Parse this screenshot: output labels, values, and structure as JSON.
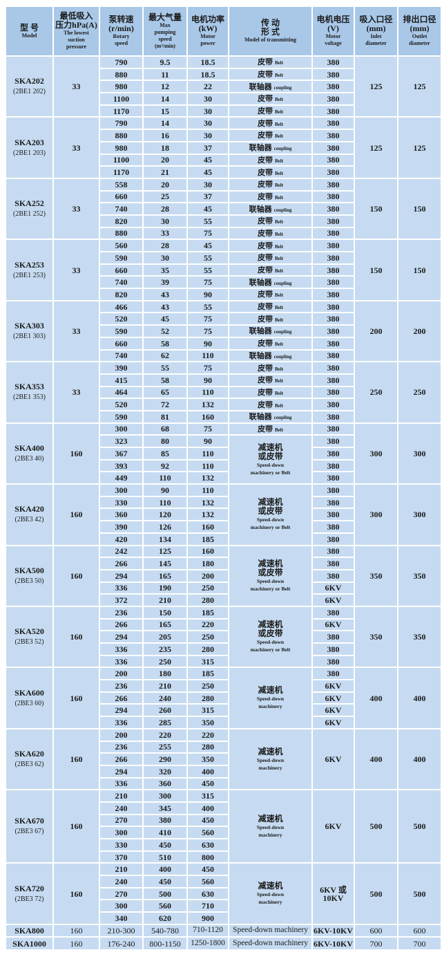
{
  "colors": {
    "header_bg": "#a9c8e8",
    "body_bg": "#c6dbf1",
    "grid": "#ffffff"
  },
  "columns": [
    {
      "cn": [
        "型 号"
      ],
      "en": [
        "Model"
      ]
    },
    {
      "cn": [
        "最低吸入",
        "压力hPa(A)"
      ],
      "en": [
        "The lowest",
        "suction",
        "pressure"
      ]
    },
    {
      "cn": [
        "泵转速",
        "(r/min)"
      ],
      "en": [
        "Rotary",
        "speed"
      ]
    },
    {
      "cn": [
        "最大气量"
      ],
      "en": [
        "Max",
        "pumping",
        "speed",
        "(m³/min)"
      ]
    },
    {
      "cn": [
        "电机功率",
        "(kW)"
      ],
      "en": [
        "Motor",
        "power"
      ]
    },
    {
      "cn": [
        "传 动",
        "形 式"
      ],
      "en": [
        "Model of transmitting"
      ]
    },
    {
      "cn": [
        "电机电压",
        "(V)"
      ],
      "en": [
        "Motor",
        "voltage"
      ]
    },
    {
      "cn": [
        "吸入口径",
        "(mm)"
      ],
      "en": [
        "Inlet",
        "diameter"
      ]
    },
    {
      "cn": [
        "排出口径",
        "(mm)"
      ],
      "en": [
        "Outlet",
        "diameter"
      ]
    }
  ],
  "transmissions": {
    "B": {
      "cn": "皮带",
      "en": "Belt"
    },
    "C": {
      "cn": "联轴器",
      "en": "coupling"
    },
    "SB": {
      "cn": [
        "减速机",
        "或皮带"
      ],
      "en": [
        "Speed-down",
        "machinery or Belt"
      ]
    },
    "S": {
      "cn": [
        "减速机"
      ],
      "en": [
        "Speed-down",
        "machinery"
      ]
    }
  },
  "groups": [
    {
      "model": "SKA202",
      "code": "(2BE1 202)",
      "pressure": "33",
      "rows": [
        [
          "790",
          "9.5",
          "18.5"
        ],
        [
          "880",
          "11",
          "18.5"
        ],
        [
          "980",
          "12",
          "22"
        ],
        [
          "1100",
          "14",
          "30"
        ],
        [
          "1170",
          "15",
          "30"
        ]
      ],
      "trans": [
        [
          "B",
          1
        ],
        [
          "B",
          1
        ],
        [
          "C",
          1
        ],
        [
          "B",
          1
        ],
        [
          "B",
          1
        ]
      ],
      "voltage": [
        [
          "380",
          1
        ],
        [
          "380",
          1
        ],
        [
          "380",
          1
        ],
        [
          "380",
          1
        ],
        [
          "380",
          1
        ]
      ],
      "inlet": "125",
      "outlet": "125"
    },
    {
      "model": "SKA203",
      "code": "(2BE1 203)",
      "pressure": "33",
      "rows": [
        [
          "790",
          "14",
          "30"
        ],
        [
          "880",
          "16",
          "30"
        ],
        [
          "980",
          "18",
          "37"
        ],
        [
          "1100",
          "20",
          "45"
        ],
        [
          "1170",
          "21",
          "45"
        ]
      ],
      "trans": [
        [
          "B",
          1
        ],
        [
          "B",
          1
        ],
        [
          "C",
          1
        ],
        [
          "B",
          1
        ],
        [
          "B",
          1
        ]
      ],
      "voltage": [
        [
          "380",
          1
        ],
        [
          "380",
          1
        ],
        [
          "380",
          1
        ],
        [
          "380",
          1
        ],
        [
          "380",
          1
        ]
      ],
      "inlet": "125",
      "outlet": "125"
    },
    {
      "model": "SKA252",
      "code": "(2BE1 252)",
      "pressure": "33",
      "rows": [
        [
          "558",
          "20",
          "30"
        ],
        [
          "660",
          "25",
          "37"
        ],
        [
          "740",
          "28",
          "45"
        ],
        [
          "820",
          "30",
          "55"
        ],
        [
          "880",
          "33",
          "75"
        ]
      ],
      "trans": [
        [
          "B",
          1
        ],
        [
          "B",
          1
        ],
        [
          "C",
          1
        ],
        [
          "B",
          1
        ],
        [
          "B",
          1
        ]
      ],
      "voltage": [
        [
          "380",
          1
        ],
        [
          "380",
          1
        ],
        [
          "380",
          1
        ],
        [
          "380",
          1
        ],
        [
          "380",
          1
        ]
      ],
      "inlet": "150",
      "outlet": "150"
    },
    {
      "model": "SKA253",
      "code": "(2BE1 253)",
      "pressure": "33",
      "rows": [
        [
          "560",
          "28",
          "45"
        ],
        [
          "590",
          "30",
          "55"
        ],
        [
          "660",
          "35",
          "55"
        ],
        [
          "740",
          "39",
          "75"
        ],
        [
          "820",
          "43",
          "90"
        ]
      ],
      "trans": [
        [
          "B",
          1
        ],
        [
          "B",
          1
        ],
        [
          "B",
          1
        ],
        [
          "C",
          1
        ],
        [
          "B",
          1
        ]
      ],
      "voltage": [
        [
          "380",
          1
        ],
        [
          "380",
          1
        ],
        [
          "380",
          1
        ],
        [
          "380",
          1
        ],
        [
          "380",
          1
        ]
      ],
      "inlet": "150",
      "outlet": "150"
    },
    {
      "model": "SKA303",
      "code": "(2BE1 303)",
      "pressure": "33",
      "rows": [
        [
          "466",
          "43",
          "55"
        ],
        [
          "520",
          "45",
          "75"
        ],
        [
          "590",
          "52",
          "75"
        ],
        [
          "660",
          "58",
          "90"
        ],
        [
          "740",
          "62",
          "110"
        ]
      ],
      "trans": [
        [
          "B",
          1
        ],
        [
          "B",
          1
        ],
        [
          "C",
          1
        ],
        [
          "B",
          1
        ],
        [
          "C",
          1
        ]
      ],
      "voltage": [
        [
          "380",
          1
        ],
        [
          "380",
          1
        ],
        [
          "380",
          1
        ],
        [
          "380",
          1
        ],
        [
          "380",
          1
        ]
      ],
      "inlet": "200",
      "outlet": "200"
    },
    {
      "model": "SKA353",
      "code": "(2BE1 353)",
      "pressure": "33",
      "rows": [
        [
          "390",
          "55",
          "75"
        ],
        [
          "415",
          "58",
          "90"
        ],
        [
          "464",
          "65",
          "110"
        ],
        [
          "520",
          "72",
          "132"
        ],
        [
          "590",
          "81",
          "160"
        ]
      ],
      "trans": [
        [
          "B",
          1
        ],
        [
          "B",
          1
        ],
        [
          "B",
          1
        ],
        [
          "B",
          1
        ],
        [
          "C",
          1
        ]
      ],
      "voltage": [
        [
          "380",
          1
        ],
        [
          "380",
          1
        ],
        [
          "380",
          1
        ],
        [
          "380",
          1
        ],
        [
          "380",
          1
        ]
      ],
      "inlet": "250",
      "outlet": "250"
    },
    {
      "model": "SKA400",
      "code": "(2BE3 40)",
      "pressure": "160",
      "rows": [
        [
          "300",
          "68",
          "75"
        ],
        [
          "323",
          "80",
          "90"
        ],
        [
          "367",
          "85",
          "110"
        ],
        [
          "393",
          "92",
          "110"
        ],
        [
          "449",
          "110",
          "132"
        ]
      ],
      "trans": [
        [
          "B",
          1
        ],
        [
          "SB",
          4
        ]
      ],
      "voltage": [
        [
          "380",
          1
        ],
        [
          "380",
          1
        ],
        [
          "380",
          1
        ],
        [
          "380",
          1
        ],
        [
          "380",
          1
        ]
      ],
      "inlet": "300",
      "outlet": "300"
    },
    {
      "model": "SKA420",
      "code": "(2BE3 42)",
      "pressure": "160",
      "rows": [
        [
          "300",
          "90",
          "110"
        ],
        [
          "330",
          "110",
          "132"
        ],
        [
          "360",
          "120",
          "132"
        ],
        [
          "390",
          "126",
          "160"
        ],
        [
          "420",
          "134",
          "185"
        ]
      ],
      "trans": [
        [
          "SB",
          5
        ]
      ],
      "voltage": [
        [
          "380",
          1
        ],
        [
          "380",
          1
        ],
        [
          "380",
          1
        ],
        [
          "380",
          1
        ],
        [
          "380",
          1
        ]
      ],
      "inlet": "300",
      "outlet": "300"
    },
    {
      "model": "SKA500",
      "code": "(2BE3 50)",
      "pressure": "160",
      "rows": [
        [
          "242",
          "125",
          "160"
        ],
        [
          "266",
          "145",
          "180"
        ],
        [
          "294",
          "165",
          "200"
        ],
        [
          "336",
          "190",
          "250"
        ],
        [
          "372",
          "210",
          "280"
        ]
      ],
      "trans": [
        [
          "SB",
          5
        ]
      ],
      "voltage": [
        [
          "380",
          1
        ],
        [
          "380",
          1
        ],
        [
          "380",
          1
        ],
        [
          "6KV",
          1
        ],
        [
          "6KV",
          1
        ]
      ],
      "inlet": "350",
      "outlet": "350"
    },
    {
      "model": "SKA520",
      "code": "(2BE3 52)",
      "pressure": "160",
      "rows": [
        [
          "236",
          "150",
          "185"
        ],
        [
          "266",
          "165",
          "220"
        ],
        [
          "294",
          "205",
          "250"
        ],
        [
          "336",
          "235",
          "280"
        ],
        [
          "336",
          "250",
          "315"
        ]
      ],
      "trans": [
        [
          "SB",
          5
        ]
      ],
      "voltage": [
        [
          "380",
          1
        ],
        [
          "6KV",
          1
        ],
        [
          "380",
          1
        ],
        [
          "380",
          1
        ],
        [
          "380",
          1
        ]
      ],
      "inlet": "350",
      "outlet": "350"
    },
    {
      "model": "SKA600",
      "code": "(2BE3 60)",
      "pressure": "160",
      "rows": [
        [
          "200",
          "180",
          "185"
        ],
        [
          "236",
          "210",
          "250"
        ],
        [
          "266",
          "240",
          "280"
        ],
        [
          "294",
          "260",
          "315"
        ],
        [
          "336",
          "285",
          "350"
        ]
      ],
      "trans": [
        [
          "S",
          5
        ]
      ],
      "voltage": [
        [
          "380",
          1
        ],
        [
          "6KV",
          1
        ],
        [
          "6KV",
          1
        ],
        [
          "6KV",
          1
        ],
        [
          "6KV",
          1
        ]
      ],
      "inlet": "400",
      "outlet": "400"
    },
    {
      "model": "SKA620",
      "code": "(2BE3 62)",
      "pressure": "160",
      "rows": [
        [
          "200",
          "220",
          "220"
        ],
        [
          "236",
          "255",
          "280"
        ],
        [
          "266",
          "290",
          "350"
        ],
        [
          "294",
          "320",
          "400"
        ],
        [
          "336",
          "360",
          "450"
        ]
      ],
      "trans": [
        [
          "S",
          5
        ]
      ],
      "voltage": [
        [
          "6KV",
          5
        ]
      ],
      "inlet": "400",
      "outlet": "400"
    },
    {
      "model": "SKA670",
      "code": "(2BE3 67)",
      "pressure": "160",
      "rows": [
        [
          "210",
          "300",
          "315"
        ],
        [
          "240",
          "345",
          "400"
        ],
        [
          "270",
          "380",
          "450"
        ],
        [
          "300",
          "410",
          "560"
        ],
        [
          "330",
          "450",
          "630"
        ],
        [
          "370",
          "510",
          "800"
        ]
      ],
      "trans": [
        [
          "S",
          6
        ]
      ],
      "voltage": [
        [
          "6KV",
          6
        ]
      ],
      "inlet": "500",
      "outlet": "500"
    },
    {
      "model": "SKA720",
      "code": "(2BE3 72)",
      "pressure": "160",
      "rows": [
        [
          "210",
          "400",
          "450"
        ],
        [
          "240",
          "450",
          "560"
        ],
        [
          "270",
          "500",
          "630"
        ],
        [
          "300",
          "560",
          "710"
        ],
        [
          "340",
          "620",
          "900"
        ]
      ],
      "trans": [
        [
          "S",
          5
        ]
      ],
      "voltage": [
        [
          "6KV 或 10KV",
          5
        ]
      ],
      "inlet": "500",
      "outlet": "500"
    }
  ],
  "tail_rows": [
    [
      "SKA800",
      "160",
      "210-300",
      "540-780",
      "710-1120",
      "Speed-down machinery",
      "6KV-10KV",
      "600",
      "600"
    ],
    [
      "SKA1000",
      "160",
      "176-240",
      "800-1150",
      "1250-1800",
      "Speed-down machinery",
      "6KV-10KV",
      "700",
      "700"
    ]
  ]
}
